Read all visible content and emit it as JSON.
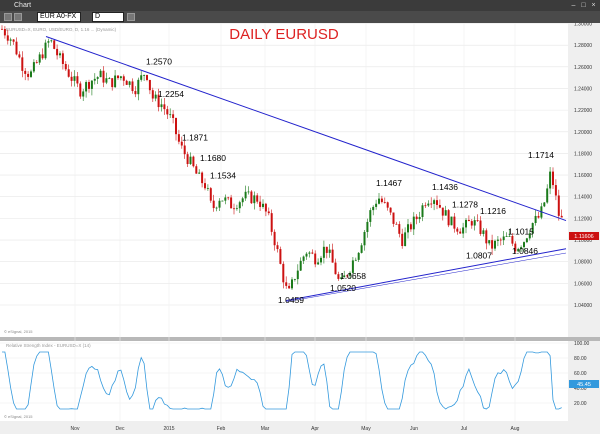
{
  "window": {
    "title": "Chart"
  },
  "toolbar": {
    "symbol": "EUR A0-FX",
    "interval": "D"
  },
  "chart_header": "EURUSD=X, EURO, USD/EURO, D, 1.16 ... (Dynamic)",
  "colors": {
    "up": "#1a7a1a",
    "down": "#cc1111",
    "trendline": "#2222cc",
    "rsi": "#3399dd",
    "title": "#dd2222"
  },
  "price_label": "1.11606",
  "rsi_label": "45.45",
  "rsi_header": "Relative Strength Index - EURUSD=X (14)",
  "copyright_top": "© eSignal, 2015",
  "copyright_bottom": "© eSignal, 2015",
  "chart_data": {
    "type": "candlestick",
    "title": "DAILY EURUSD",
    "x_axis_labels": [
      "Nov",
      "Dec",
      "2015",
      "Feb",
      "Mar",
      "Apr",
      "May",
      "Jun",
      "Jul",
      "Aug"
    ],
    "y_axis": {
      "min": 1.03,
      "max": 1.31,
      "ticks": [
        "1.30000",
        "1.28000",
        "1.26000",
        "1.24000",
        "1.22000",
        "1.20000",
        "1.18000",
        "1.16000",
        "1.14000",
        "1.12000",
        "1.10000",
        "1.08000",
        "1.06000",
        "1.04000"
      ]
    },
    "rsi_axis": {
      "min": 0,
      "max": 100,
      "ticks": [
        "100.00",
        "80.00",
        "60.00",
        "40.00",
        "20.00"
      ]
    },
    "annotations": [
      "1.2570",
      "1.2254",
      "1.1871",
      "1.1680",
      "1.1534",
      "1.0459",
      "1.0520",
      "1.0658",
      "1.1467",
      "1.1436",
      "1.1278",
      "1.1216",
      "1.1015",
      "1.0807",
      "1.0846",
      "1.1714"
    ],
    "trendlines": [
      {
        "from": [
          "Oct",
          1.285
        ],
        "to": [
          "Aug",
          1.118
        ]
      },
      {
        "from": [
          "Mar",
          1.0459
        ],
        "to": [
          "Aug",
          1.09
        ]
      }
    ]
  }
}
